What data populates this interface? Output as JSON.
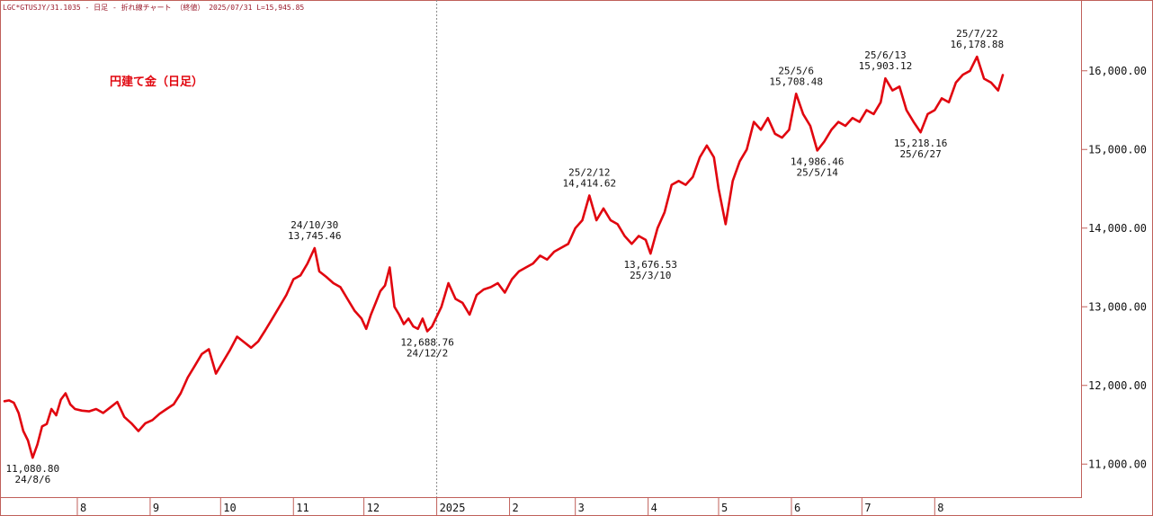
{
  "header": {
    "symbol": "LGC*GTUSJY/31.1035",
    "interval": "日足",
    "chart_kind": "折れ線チャート",
    "price_type": "（終値）",
    "date": "2025/07/31",
    "last": "L=15,945.85"
  },
  "colors": {
    "line": "#e1060f",
    "axis": "#c0605a",
    "text": "#111111"
  },
  "chart_data": {
    "type": "line",
    "title": "",
    "legend": "円建て金（日足）",
    "xlabel": "",
    "ylabel": "",
    "ylim": [
      10580,
      16900
    ],
    "grid": false,
    "x_ticks": [
      {
        "label": "8",
        "date": "2024-08-01"
      },
      {
        "label": "9",
        "date": "2024-09-01"
      },
      {
        "label": "10",
        "date": "2024-10-01"
      },
      {
        "label": "11",
        "date": "2024-11-01"
      },
      {
        "label": "12",
        "date": "2024-12-01"
      },
      {
        "label": "2025",
        "date": "2025-01-01"
      },
      {
        "label": "2",
        "date": "2025-02-01"
      },
      {
        "label": "3",
        "date": "2025-03-01"
      },
      {
        "label": "4",
        "date": "2025-04-01"
      },
      {
        "label": "5",
        "date": "2025-05-01"
      },
      {
        "label": "6",
        "date": "2025-06-01"
      },
      {
        "label": "7",
        "date": "2025-07-01"
      },
      {
        "label": "8",
        "date": "2025-08-01"
      }
    ],
    "y_ticks": [
      {
        "value": 11000,
        "label": "11,000.00"
      },
      {
        "value": 12000,
        "label": "12,000.00"
      },
      {
        "value": 13000,
        "label": "13,000.00"
      },
      {
        "value": 14000,
        "label": "14,000.00"
      },
      {
        "value": 15000,
        "label": "15,000.00"
      },
      {
        "value": 16000,
        "label": "16,000.00"
      }
    ],
    "year_divider": "2025-01-01",
    "series": [
      {
        "name": "",
        "points": [
          [
            "2024-07-01",
            11800
          ],
          [
            "2024-07-03",
            11810
          ],
          [
            "2024-07-05",
            11780
          ],
          [
            "2024-07-07",
            11650
          ],
          [
            "2024-07-09",
            11420
          ],
          [
            "2024-07-11",
            11300
          ],
          [
            "2024-07-13",
            11080.8
          ],
          [
            "2024-07-15",
            11250
          ],
          [
            "2024-07-17",
            11480
          ],
          [
            "2024-07-19",
            11510
          ],
          [
            "2024-07-21",
            11700
          ],
          [
            "2024-07-23",
            11620
          ],
          [
            "2024-07-25",
            11820
          ],
          [
            "2024-07-27",
            11900
          ],
          [
            "2024-07-29",
            11760
          ],
          [
            "2024-07-31",
            11700
          ],
          [
            "2024-08-03",
            11680
          ],
          [
            "2024-08-06",
            11670
          ],
          [
            "2024-08-09",
            11700
          ],
          [
            "2024-08-12",
            11650
          ],
          [
            "2024-08-15",
            11720
          ],
          [
            "2024-08-18",
            11790
          ],
          [
            "2024-08-21",
            11600
          ],
          [
            "2024-08-24",
            11520
          ],
          [
            "2024-08-27",
            11420
          ],
          [
            "2024-08-30",
            11520
          ],
          [
            "2024-09-02",
            11560
          ],
          [
            "2024-09-05",
            11640
          ],
          [
            "2024-09-08",
            11700
          ],
          [
            "2024-09-11",
            11760
          ],
          [
            "2024-09-14",
            11900
          ],
          [
            "2024-09-17",
            12100
          ],
          [
            "2024-09-20",
            12250
          ],
          [
            "2024-09-23",
            12400
          ],
          [
            "2024-09-26",
            12460
          ],
          [
            "2024-09-29",
            12150
          ],
          [
            "2024-10-02",
            12300
          ],
          [
            "2024-10-05",
            12450
          ],
          [
            "2024-10-08",
            12620
          ],
          [
            "2024-10-11",
            12550
          ],
          [
            "2024-10-14",
            12480
          ],
          [
            "2024-10-17",
            12560
          ],
          [
            "2024-10-20",
            12700
          ],
          [
            "2024-10-23",
            12850
          ],
          [
            "2024-10-26",
            13000
          ],
          [
            "2024-10-29",
            13150
          ],
          [
            "2024-11-01",
            13350
          ],
          [
            "2024-11-04",
            13400
          ],
          [
            "2024-11-07",
            13550
          ],
          [
            "2024-11-10",
            13745.46
          ],
          [
            "2024-11-12",
            13450
          ],
          [
            "2024-11-15",
            13380
          ],
          [
            "2024-11-18",
            13300
          ],
          [
            "2024-11-21",
            13250
          ],
          [
            "2024-11-24",
            13100
          ],
          [
            "2024-11-27",
            12950
          ],
          [
            "2024-11-30",
            12850
          ],
          [
            "2024-12-02",
            12720
          ],
          [
            "2024-12-04",
            12900
          ],
          [
            "2024-12-06",
            13050
          ],
          [
            "2024-12-08",
            13200
          ],
          [
            "2024-12-10",
            13270
          ],
          [
            "2024-12-12",
            13500
          ],
          [
            "2024-12-14",
            13000
          ],
          [
            "2024-12-16",
            12900
          ],
          [
            "2024-12-18",
            12780
          ],
          [
            "2024-12-20",
            12850
          ],
          [
            "2024-12-22",
            12750
          ],
          [
            "2024-12-24",
            12720
          ],
          [
            "2024-12-26",
            12850
          ],
          [
            "2024-12-28",
            12688.76
          ],
          [
            "2024-12-30",
            12750
          ],
          [
            "2025-01-03",
            13000
          ],
          [
            "2025-01-06",
            13300
          ],
          [
            "2025-01-09",
            13100
          ],
          [
            "2025-01-12",
            13050
          ],
          [
            "2025-01-15",
            12900
          ],
          [
            "2025-01-18",
            13150
          ],
          [
            "2025-01-21",
            13220
          ],
          [
            "2025-01-24",
            13250
          ],
          [
            "2025-01-27",
            13300
          ],
          [
            "2025-01-30",
            13180
          ],
          [
            "2025-02-02",
            13350
          ],
          [
            "2025-02-05",
            13450
          ],
          [
            "2025-02-08",
            13500
          ],
          [
            "2025-02-11",
            13550
          ],
          [
            "2025-02-14",
            13650
          ],
          [
            "2025-02-17",
            13600
          ],
          [
            "2025-02-20",
            13700
          ],
          [
            "2025-02-23",
            13750
          ],
          [
            "2025-02-26",
            13800
          ],
          [
            "2025-03-01",
            14000
          ],
          [
            "2025-03-04",
            14100
          ],
          [
            "2025-03-07",
            14414.62
          ],
          [
            "2025-03-10",
            14100
          ],
          [
            "2025-03-13",
            14250
          ],
          [
            "2025-03-16",
            14100
          ],
          [
            "2025-03-19",
            14050
          ],
          [
            "2025-03-22",
            13900
          ],
          [
            "2025-03-25",
            13800
          ],
          [
            "2025-03-28",
            13900
          ],
          [
            "2025-03-31",
            13850
          ],
          [
            "2025-04-02",
            13676.53
          ],
          [
            "2025-04-05",
            14000
          ],
          [
            "2025-04-08",
            14200
          ],
          [
            "2025-04-11",
            14550
          ],
          [
            "2025-04-14",
            14600
          ],
          [
            "2025-04-17",
            14550
          ],
          [
            "2025-04-20",
            14650
          ],
          [
            "2025-04-23",
            14900
          ],
          [
            "2025-04-26",
            15050
          ],
          [
            "2025-04-29",
            14900
          ],
          [
            "2025-05-01",
            14500
          ],
          [
            "2025-05-04",
            14050
          ],
          [
            "2025-05-07",
            14600
          ],
          [
            "2025-05-10",
            14850
          ],
          [
            "2025-05-13",
            15000
          ],
          [
            "2025-05-16",
            15350
          ],
          [
            "2025-05-19",
            15250
          ],
          [
            "2025-05-22",
            15400
          ],
          [
            "2025-05-25",
            15200
          ],
          [
            "2025-05-28",
            15150
          ],
          [
            "2025-05-31",
            15250
          ],
          [
            "2025-06-03",
            15708.48
          ],
          [
            "2025-06-06",
            15450
          ],
          [
            "2025-06-09",
            15300
          ],
          [
            "2025-06-12",
            14986.46
          ],
          [
            "2025-06-15",
            15100
          ],
          [
            "2025-06-18",
            15250
          ],
          [
            "2025-06-21",
            15350
          ],
          [
            "2025-06-24",
            15300
          ],
          [
            "2025-06-27",
            15400
          ],
          [
            "2025-06-30",
            15350
          ],
          [
            "2025-07-03",
            15500
          ],
          [
            "2025-07-06",
            15450
          ],
          [
            "2025-07-09",
            15600
          ],
          [
            "2025-07-11",
            15903.12
          ],
          [
            "2025-07-14",
            15750
          ],
          [
            "2025-07-17",
            15800
          ],
          [
            "2025-07-20",
            15500
          ],
          [
            "2025-07-23",
            15350
          ],
          [
            "2025-07-26",
            15218.16
          ],
          [
            "2025-07-29",
            15450
          ],
          [
            "2025-08-01",
            15500
          ],
          [
            "2025-08-04",
            15650
          ],
          [
            "2025-08-07",
            15600
          ],
          [
            "2025-08-10",
            15850
          ],
          [
            "2025-08-13",
            15950
          ],
          [
            "2025-08-16",
            16000
          ],
          [
            "2025-08-19",
            16178.88
          ],
          [
            "2025-08-22",
            15900
          ],
          [
            "2025-08-25",
            15850
          ],
          [
            "2025-08-28",
            15750
          ],
          [
            "2025-08-30",
            15945.85
          ]
        ]
      }
    ],
    "annotations": [
      {
        "date": "24/8/6",
        "value": "11,080.80",
        "x": "2024-07-13",
        "y": 11080.8,
        "pos": "below"
      },
      {
        "date": "24/10/30",
        "value": "13,745.46",
        "x": "2024-11-10",
        "y": 13745.46,
        "pos": "above"
      },
      {
        "date": "24/12/2",
        "value": "12,688.76",
        "x": "2024-12-28",
        "y": 12688.76,
        "pos": "below"
      },
      {
        "date": "25/2/12",
        "value": "14,414.62",
        "x": "2025-03-07",
        "y": 14414.62,
        "pos": "above"
      },
      {
        "date": "25/3/10",
        "value": "13,676.53",
        "x": "2025-04-02",
        "y": 13676.53,
        "pos": "below"
      },
      {
        "date": "25/5/6",
        "value": "15,708.48",
        "x": "2025-06-03",
        "y": 15708.48,
        "pos": "above"
      },
      {
        "date": "25/5/14",
        "value": "14,986.46",
        "x": "2025-06-12",
        "y": 14986.46,
        "pos": "below"
      },
      {
        "date": "25/6/13",
        "value": "15,903.12",
        "x": "2025-07-11",
        "y": 15903.12,
        "pos": "above"
      },
      {
        "date": "25/6/27",
        "value": "15,218.16",
        "x": "2025-07-26",
        "y": 15218.16,
        "pos": "below"
      },
      {
        "date": "25/7/22",
        "value": "16,178.88",
        "x": "2025-08-19",
        "y": 16178.88,
        "pos": "above"
      }
    ]
  }
}
